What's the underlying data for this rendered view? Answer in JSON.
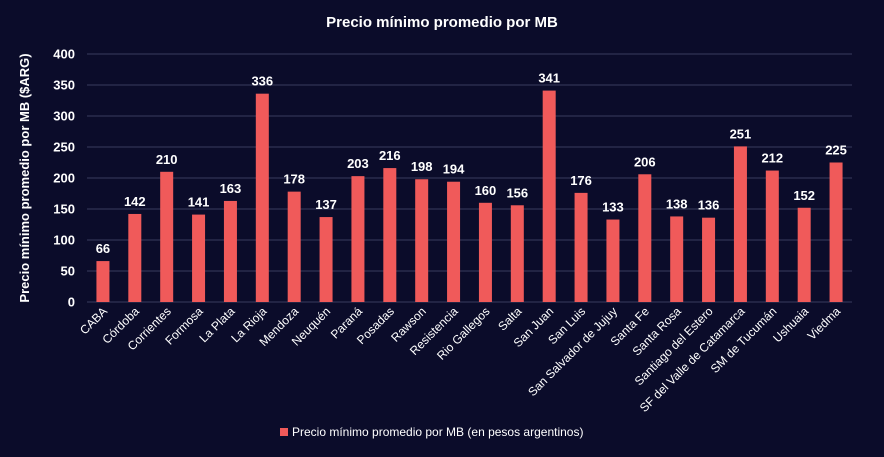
{
  "chart_data": {
    "type": "bar",
    "title": "Precio mínimo promedio por MB",
    "ylabel": "Precio mínimo promedio por MB ($ARG)",
    "xlabel": "",
    "ylim": [
      0,
      400
    ],
    "yticks": [
      0,
      50,
      100,
      150,
      200,
      250,
      300,
      350,
      400
    ],
    "grid": true,
    "legend_position": "bottom",
    "categories": [
      "CABA",
      "Córdoba",
      "Corrientes",
      "Formosa",
      "La Plata",
      "La Rioja",
      "Mendoza",
      "Neuquén",
      "Paraná",
      "Posadas",
      "Rawson",
      "Resistencia",
      "Rio Gallegos",
      "Salta",
      "San Juan",
      "San Luis",
      "San Salvador de Jujuy",
      "Santa Fe",
      "Santa Rosa",
      "Santiago del Estero",
      "SF del Valle de Catamarca",
      "SM de Tucumán",
      "Ushuaia",
      "Viedma"
    ],
    "series": [
      {
        "name": "Precio mínimo promedio por MB (en pesos argentinos)",
        "color": "#f05a5a",
        "values": [
          66,
          142,
          210,
          141,
          163,
          336,
          178,
          137,
          203,
          216,
          198,
          194,
          160,
          156,
          341,
          176,
          133,
          206,
          138,
          136,
          251,
          212,
          152,
          225
        ]
      }
    ],
    "colors": {
      "background": "#0b0c2a",
      "text": "#ffffff",
      "grid": "#3a3c5e"
    }
  }
}
